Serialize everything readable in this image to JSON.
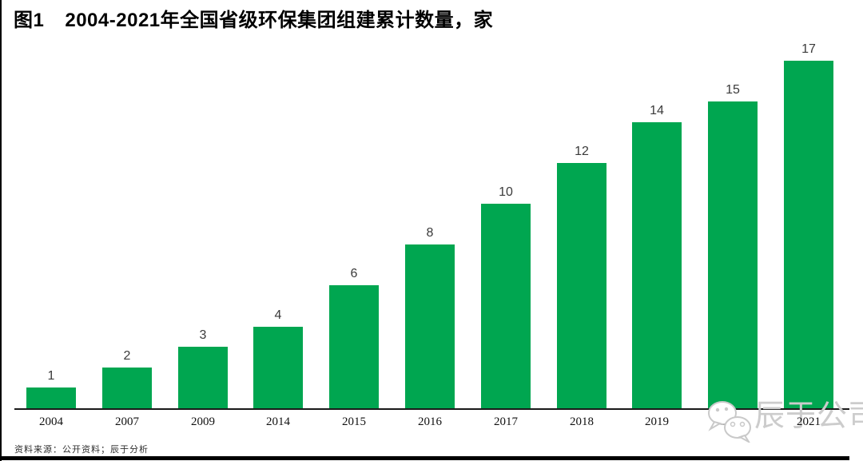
{
  "header": {
    "figure_label": "图1",
    "title": "2004-2021年全国省级环保集团组建累计数量，家"
  },
  "chart_data": {
    "type": "bar",
    "title": "图1 2004-2021年全国省级环保集团组建累计数量，家",
    "categories": [
      "2004",
      "2007",
      "2009",
      "2014",
      "2015",
      "2016",
      "2017",
      "2018",
      "2019",
      "2020",
      "2021"
    ],
    "values": [
      1,
      2,
      3,
      4,
      6,
      8,
      10,
      12,
      14,
      15,
      17
    ],
    "xlabel": "",
    "ylabel": "家",
    "ylim": [
      0,
      17
    ],
    "grid": false,
    "legend": false,
    "value_labels_shown": true,
    "bar_color": "#00a650",
    "axis_color": "#1a1a1a"
  },
  "footer": {
    "source": "资料来源：公开资料；辰于分析"
  },
  "watermark": {
    "label": "辰于公司",
    "icon": "wechat-icon",
    "color": "#cccccc"
  }
}
